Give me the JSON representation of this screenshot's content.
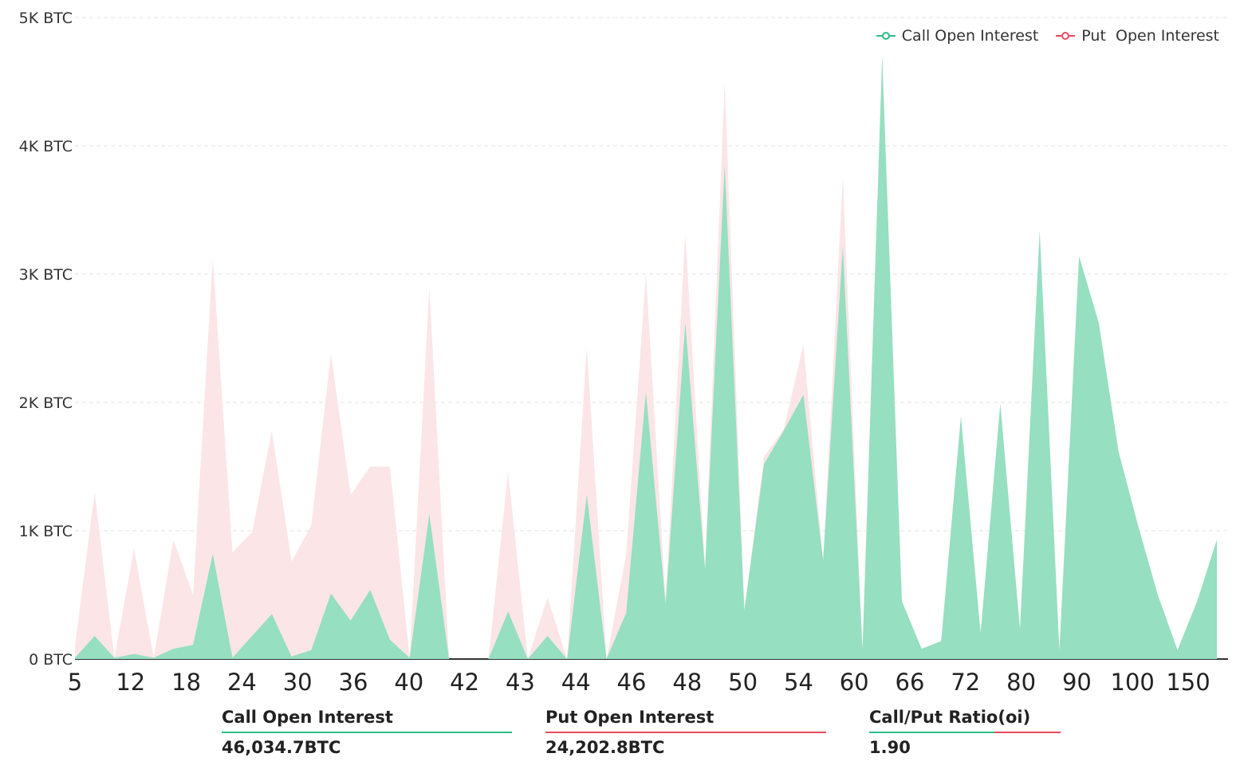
{
  "chart_data": {
    "type": "area",
    "title": "",
    "xlabel": "",
    "ylabel": "",
    "ylim": [
      0,
      5000
    ],
    "y_ticks": [
      "0 BTC",
      "1K BTC",
      "2K BTC",
      "3K BTC",
      "4K BTC",
      "5K BTC"
    ],
    "y_tick_values": [
      0,
      1000,
      2000,
      3000,
      4000,
      5000
    ],
    "x_ticks": [
      "5",
      "12",
      "18",
      "24",
      "30",
      "36",
      "40",
      "42",
      "43",
      "44",
      "46",
      "48",
      "50",
      "54",
      "60",
      "66",
      "72",
      "80",
      "90",
      "100",
      "150"
    ],
    "grid": "horizontal dashed",
    "legend_position": "top-right",
    "series": [
      {
        "name": "Call Open Interest",
        "color": "#6fd3a8",
        "fill": "#96dfc1",
        "values": [
          10,
          180,
          10,
          40,
          10,
          80,
          110,
          820,
          10,
          180,
          350,
          20,
          70,
          510,
          300,
          540,
          150,
          10,
          1130,
          0,
          0,
          0,
          370,
          0,
          180,
          0,
          1280,
          0,
          360,
          2080,
          430,
          2620,
          700,
          3850,
          380,
          1520,
          1780,
          2060,
          770,
          3220,
          70,
          4700,
          450,
          80,
          140,
          1890,
          200,
          1990,
          230,
          3340,
          60,
          3140,
          2620,
          1620,
          1040,
          500,
          70,
          450,
          930
        ]
      },
      {
        "name": "Put  Open Interest",
        "color": "#e84a5f",
        "fill": "#fbe5e7",
        "values": [
          100,
          1300,
          10,
          860,
          10,
          930,
          500,
          3130,
          830,
          990,
          1780,
          760,
          1040,
          2380,
          1280,
          1500,
          1500,
          10,
          2900,
          0,
          0,
          0,
          1460,
          0,
          480,
          0,
          2440,
          0,
          820,
          3000,
          460,
          3320,
          720,
          4500,
          380,
          1580,
          1790,
          2450,
          770,
          3750,
          70,
          4700,
          450,
          80,
          140,
          1890,
          200,
          1990,
          230,
          3340,
          60,
          3140,
          2620,
          1620,
          1040,
          500,
          70,
          450,
          930
        ]
      }
    ]
  },
  "legend": {
    "call_label": "Call Open Interest",
    "put_label": "Put  Open Interest"
  },
  "stats": {
    "call": {
      "label": "Call Open Interest",
      "value": "46,034.7BTC",
      "color": "#2ebd85"
    },
    "put": {
      "label": "Put Open Interest",
      "value": "24,202.8BTC",
      "color": "#e84a5f"
    },
    "ratio": {
      "label": "Call/Put Ratio(oi)",
      "value": "1.90",
      "call_fraction": 0.655
    }
  }
}
